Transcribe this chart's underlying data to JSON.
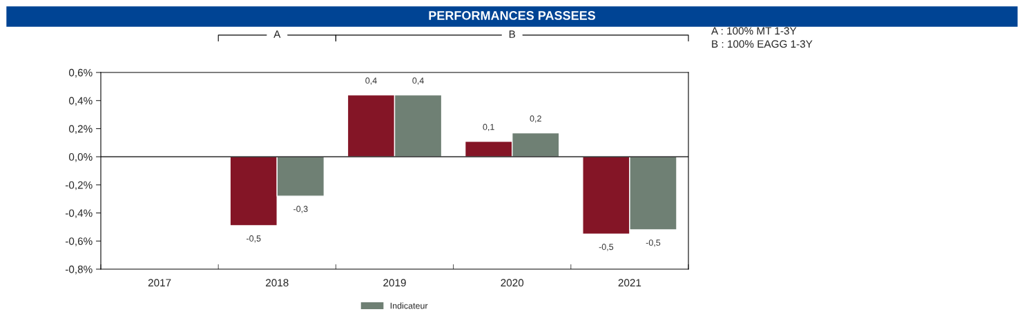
{
  "chart_data": {
    "type": "bar",
    "title": "PERFORMANCES PASSEES",
    "categories": [
      "2017",
      "2018",
      "2019",
      "2020",
      "2021"
    ],
    "series": [
      {
        "color": "#841526",
        "values": [
          null,
          -0.49,
          0.44,
          0.11,
          -0.55
        ],
        "value_labels": [
          null,
          "-0,5",
          "0,4",
          "0,1",
          "-0,5"
        ]
      },
      {
        "name": "Indicateur",
        "color": "#6f8074",
        "values": [
          null,
          -0.28,
          0.44,
          0.17,
          -0.52
        ],
        "value_labels": [
          null,
          "-0,3",
          "0,4",
          "0,2",
          "-0,5"
        ]
      }
    ],
    "ylim": [
      -0.8,
      0.6
    ],
    "yticks": [
      {
        "value": -0.8,
        "label": "-0,8%"
      },
      {
        "value": -0.6,
        "label": "-0,6%"
      },
      {
        "value": -0.4,
        "label": "-0,4%"
      },
      {
        "value": -0.2,
        "label": "-0,2%"
      },
      {
        "value": 0,
        "label": "0,0%"
      },
      {
        "value": 0.2,
        "label": "0,2%"
      },
      {
        "value": 0.4,
        "label": "0,4%"
      },
      {
        "value": 0.6,
        "label": "0,6%"
      }
    ],
    "annotations": [
      "A",
      "B",
      "A : 100% MT 1-3Y",
      "B : 100% EAGG 1-3Y"
    ],
    "ref_lines": [
      {
        "axis": "y",
        "value": 0,
        "color": "#000000"
      }
    ],
    "grid": false,
    "legend": "bottom"
  }
}
